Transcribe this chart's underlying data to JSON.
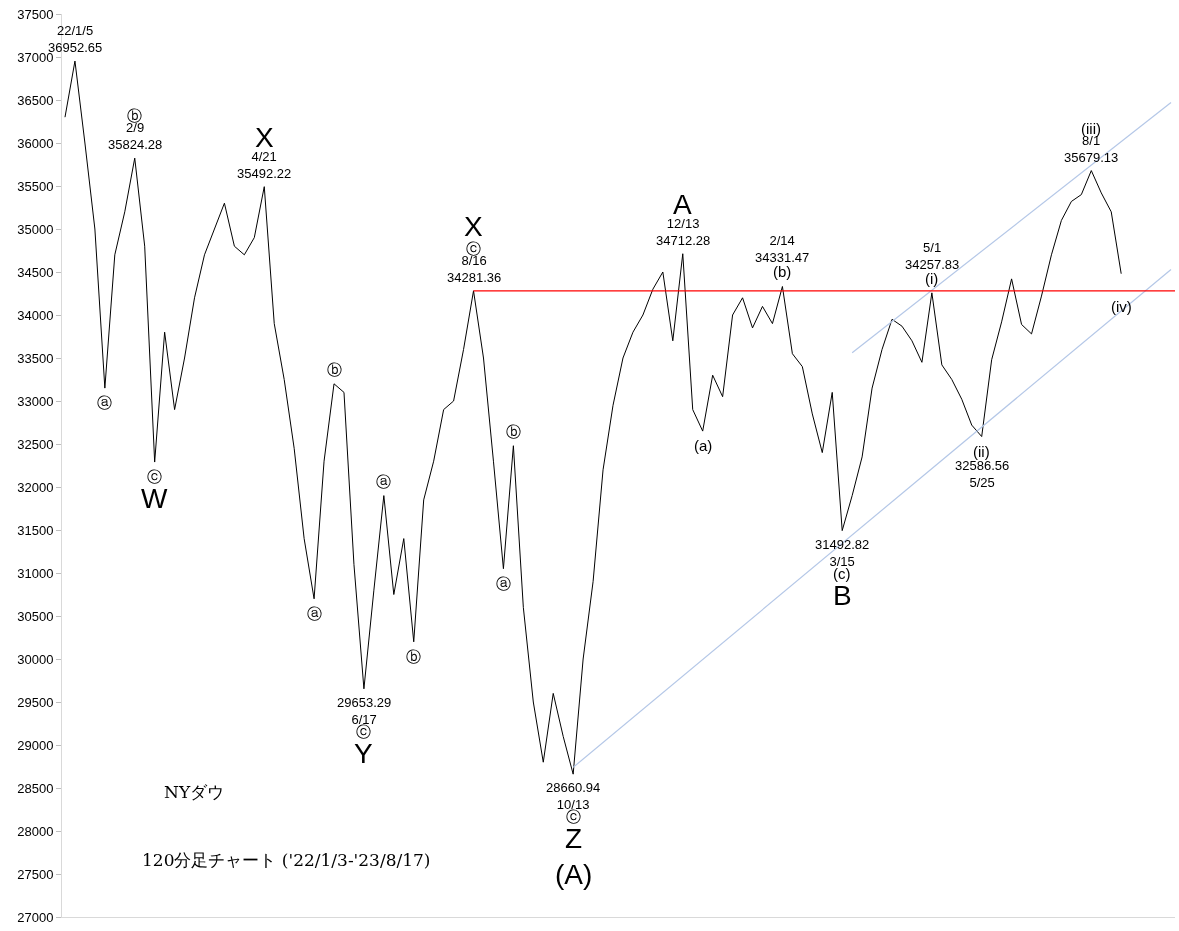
{
  "chart_data": {
    "type": "line",
    "title": "NYダウ",
    "subtitle": "120分足チャート ('22/1/3-'23/8/17)",
    "categories": [
      null,
      null,
      null,
      null,
      null,
      null,
      null,
      null,
      null,
      null,
      null,
      null,
      null,
      null,
      null,
      null,
      null,
      null,
      null,
      null,
      null,
      null,
      null,
      null,
      null,
      null,
      null,
      null,
      null,
      null,
      null,
      null,
      null,
      null,
      null,
      null,
      null,
      null,
      null,
      null,
      null,
      null,
      null,
      null,
      null,
      null,
      null,
      null,
      null,
      null,
      null,
      null,
      null,
      null,
      null,
      null,
      null,
      null,
      null,
      null,
      null,
      null,
      null,
      null,
      null,
      null,
      null,
      null,
      null,
      null,
      null,
      null,
      null,
      null,
      null,
      null,
      null,
      null,
      null,
      null,
      null,
      null,
      null,
      null,
      null,
      null,
      null,
      null,
      null,
      null,
      null,
      null,
      null,
      null,
      null,
      null,
      null,
      null,
      null,
      null,
      null,
      null,
      null,
      null,
      null,
      null,
      null,
      null,
      null,
      null,
      null,
      null
    ],
    "series": [
      {
        "color": "#000000",
        "values": [
          36300,
          36952.65,
          36000,
          35000,
          33150,
          34700,
          35200,
          35824.28,
          34800,
          32290,
          33800,
          32900,
          33500,
          34200,
          34700,
          35000,
          35300,
          34800,
          34700,
          34900,
          35492.22,
          33900,
          33250,
          32450,
          31400,
          30700,
          32300,
          33200,
          33100,
          31100,
          29653.29,
          30800,
          31900,
          30750,
          31400,
          30200,
          31850,
          32300,
          32900,
          33000,
          33600,
          34281.36,
          33500,
          32300,
          31050,
          32480,
          30600,
          29500,
          28800,
          29600,
          29100,
          28660.94,
          30000,
          30900,
          32200,
          32950,
          33500,
          33800,
          34000,
          34300,
          34500,
          33700,
          34712.28,
          32900,
          32650,
          33300,
          33050,
          34000,
          34200,
          33850,
          34100,
          33900,
          34331.47,
          33550,
          33400,
          32850,
          32400,
          33100,
          31492.82,
          31900,
          32350,
          33150,
          33600,
          33950,
          33870,
          33700,
          33450,
          34257.83,
          33420,
          33250,
          33020,
          32720,
          32586.56,
          33480,
          33920,
          34420,
          33890,
          33780,
          34220,
          34700,
          35100,
          35320,
          35400,
          35679.13,
          35420,
          35200,
          34480,
          null,
          null,
          null,
          null,
          null
        ]
      },
      {
        "type": "line",
        "color": "#b4c7e7",
        "values": [
          null,
          null,
          null,
          null,
          null,
          null,
          null,
          null,
          null,
          null,
          null,
          null,
          null,
          null,
          null,
          null,
          null,
          null,
          null,
          null,
          null,
          null,
          null,
          null,
          null,
          null,
          null,
          null,
          null,
          null,
          null,
          null,
          null,
          null,
          null,
          null,
          null,
          null,
          null,
          null,
          null,
          null,
          null,
          null,
          null,
          null,
          null,
          null,
          null,
          null,
          null,
          28740,
          null,
          null,
          null,
          null,
          null,
          null,
          null,
          null,
          null,
          null,
          null,
          null,
          null,
          null,
          null,
          null,
          null,
          null,
          null,
          null,
          null,
          null,
          null,
          null,
          null,
          null,
          null,
          null,
          null,
          null,
          null,
          null,
          null,
          null,
          null,
          null,
          null,
          null,
          null,
          null,
          null,
          null,
          null,
          null,
          null,
          null,
          null,
          null,
          null,
          null,
          null,
          null,
          null,
          null,
          null,
          null,
          null,
          null,
          null,
          34530
        ]
      },
      {
        "type": "line",
        "color": "#b4c7e7",
        "values": [
          null,
          null,
          null,
          null,
          null,
          null,
          null,
          null,
          null,
          null,
          null,
          null,
          null,
          null,
          null,
          null,
          null,
          null,
          null,
          null,
          null,
          null,
          null,
          null,
          null,
          null,
          null,
          null,
          null,
          null,
          null,
          null,
          null,
          null,
          null,
          null,
          null,
          null,
          null,
          null,
          null,
          null,
          null,
          null,
          null,
          null,
          null,
          null,
          null,
          null,
          null,
          null,
          null,
          null,
          null,
          null,
          null,
          null,
          null,
          null,
          null,
          null,
          null,
          null,
          null,
          null,
          null,
          null,
          null,
          null,
          null,
          null,
          null,
          null,
          null,
          null,
          null,
          null,
          null,
          33560,
          null,
          null,
          null,
          null,
          null,
          null,
          null,
          null,
          null,
          null,
          null,
          null,
          null,
          null,
          null,
          null,
          null,
          null,
          null,
          null,
          null,
          null,
          null,
          null,
          null,
          null,
          null,
          null,
          null,
          null,
          null,
          36470
        ]
      }
    ],
    "ref_lines": [
      {
        "axis": "y",
        "value": 34281.36,
        "color": "#ff0000"
      }
    ],
    "ylim": [
      27000,
      37500
    ],
    "yticks": [
      27000,
      27500,
      28000,
      28500,
      29000,
      29500,
      30000,
      30500,
      31000,
      31500,
      32000,
      32500,
      33000,
      33500,
      34000,
      34500,
      35000,
      35500,
      36000,
      36500,
      37000,
      37500
    ],
    "tick_labels": "y",
    "annotations": [
      {
        "text": "22/1/5\n36952.65",
        "y": 36952.65
      },
      {
        "text": "ⓐ",
        "y": 33150
      },
      {
        "text": "2/9\n35824.28",
        "y": 35824.28
      },
      {
        "text": "ⓑ",
        "y": 35824.28
      },
      {
        "text": "ⓒ",
        "y": 32290
      },
      {
        "text": "W",
        "y": 32290
      },
      {
        "text": "4/21\n35492.22",
        "y": 35492.22
      },
      {
        "text": "X",
        "y": 35492.22
      },
      {
        "text": "ⓐ",
        "y": 30700
      },
      {
        "text": "ⓑ",
        "y": 33200
      },
      {
        "text": "29653.29\n6/17",
        "y": 29653.29
      },
      {
        "text": "ⓒ",
        "y": 29653.29
      },
      {
        "text": "Y",
        "y": 29653.29
      },
      {
        "text": "ⓐ",
        "y": 31900
      },
      {
        "text": "ⓑ",
        "y": 30200
      },
      {
        "text": "8/16\n34281.36",
        "y": 34281.36
      },
      {
        "text": "ⓒ",
        "y": 34281.36
      },
      {
        "text": "X",
        "y": 34281.36
      },
      {
        "text": "ⓐ",
        "y": 31050
      },
      {
        "text": "ⓑ",
        "y": 32480
      },
      {
        "text": "28660.94\n10/13",
        "y": 28660.94
      },
      {
        "text": "ⓒ",
        "y": 28660.94
      },
      {
        "text": "Z\n(A)",
        "y": 28660.94
      },
      {
        "text": "12/13\n34712.28",
        "y": 34712.28
      },
      {
        "text": "A",
        "y": 34712.28
      },
      {
        "text": "(a)",
        "y": 32650
      },
      {
        "text": "(b)",
        "y": 34331.47
      },
      {
        "text": "2/14\n34331.47",
        "y": 34331.47
      },
      {
        "text": "31492.82\n3/15",
        "y": 31492.82
      },
      {
        "text": "(c)",
        "y": 31492.82
      },
      {
        "text": "B",
        "y": 31492.82
      },
      {
        "text": "(i)",
        "y": 34257.83
      },
      {
        "text": "5/1\n34257.83",
        "y": 34257.83
      },
      {
        "text": "(ii)",
        "y": 32586.56
      },
      {
        "text": "32586.56\n5/25",
        "y": 32586.56
      },
      {
        "text": "8/1\n35679.13",
        "y": 35679.13
      },
      {
        "text": "(iii)",
        "y": 35679.13
      },
      {
        "text": "(iv)",
        "y": 34480
      }
    ]
  }
}
